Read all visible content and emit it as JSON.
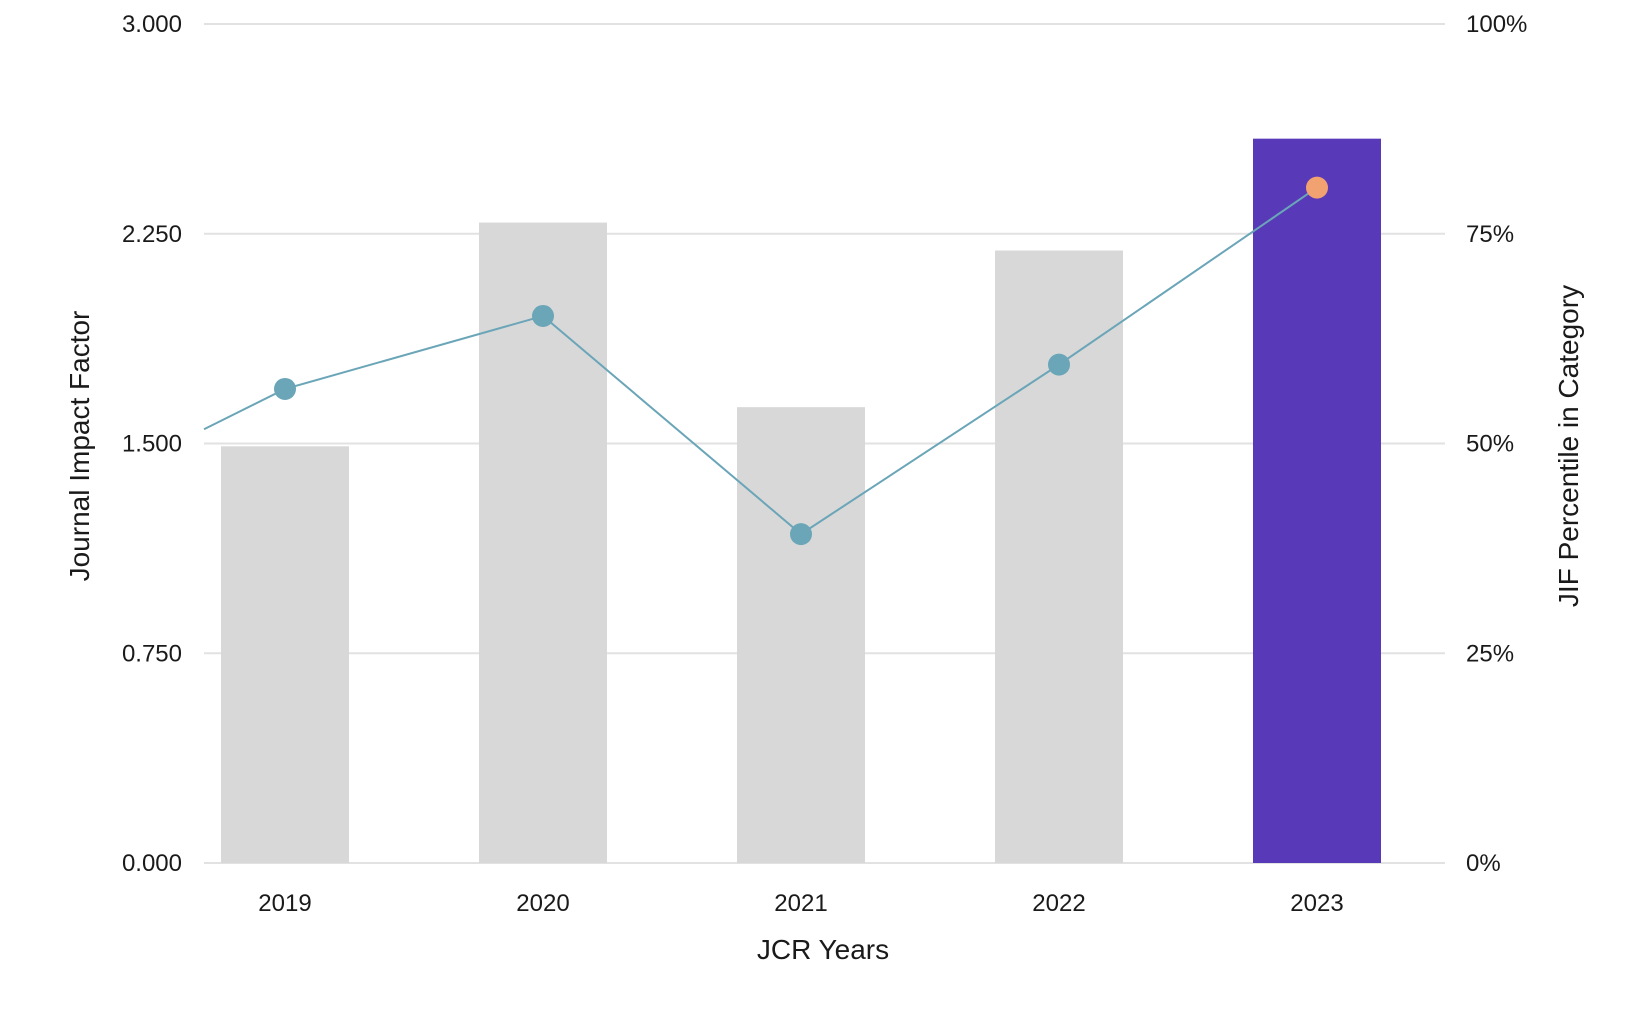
{
  "chart_data": {
    "type": "bar",
    "categories": [
      "2019",
      "2020",
      "2021",
      "2022",
      "2023"
    ],
    "series": [
      {
        "values": [
          1.49,
          2.29,
          1.63,
          2.19,
          2.59
        ],
        "axis": "left",
        "kind": "bar"
      },
      {
        "values": [
          56.5,
          65.2,
          39.2,
          59.4,
          80.5
        ],
        "axis": "right",
        "kind": "line"
      }
    ],
    "xlabel": "JCR Years",
    "ylabel": "Journal Impact Factor",
    "y2label": "JIF Percentile in Category",
    "ylim": [
      0,
      3
    ],
    "y2lim": [
      0,
      100
    ],
    "yticks": [
      "0.000",
      "0.750",
      "1.500",
      "2.250",
      "3.000"
    ],
    "y2ticks": [
      "0%",
      "25%",
      "50%",
      "75%",
      "100%"
    ],
    "line_left_edge_value": 51.7,
    "grid": true,
    "legend": "none",
    "colors": {
      "bar": "#d8d8d8",
      "bar_highlight": "#5839b8",
      "line": "#6aa5b8",
      "marker": "#6aa5b8",
      "marker_highlight": "#f2a271",
      "grid": "#e2e2e2"
    },
    "highlight_index": 4
  }
}
